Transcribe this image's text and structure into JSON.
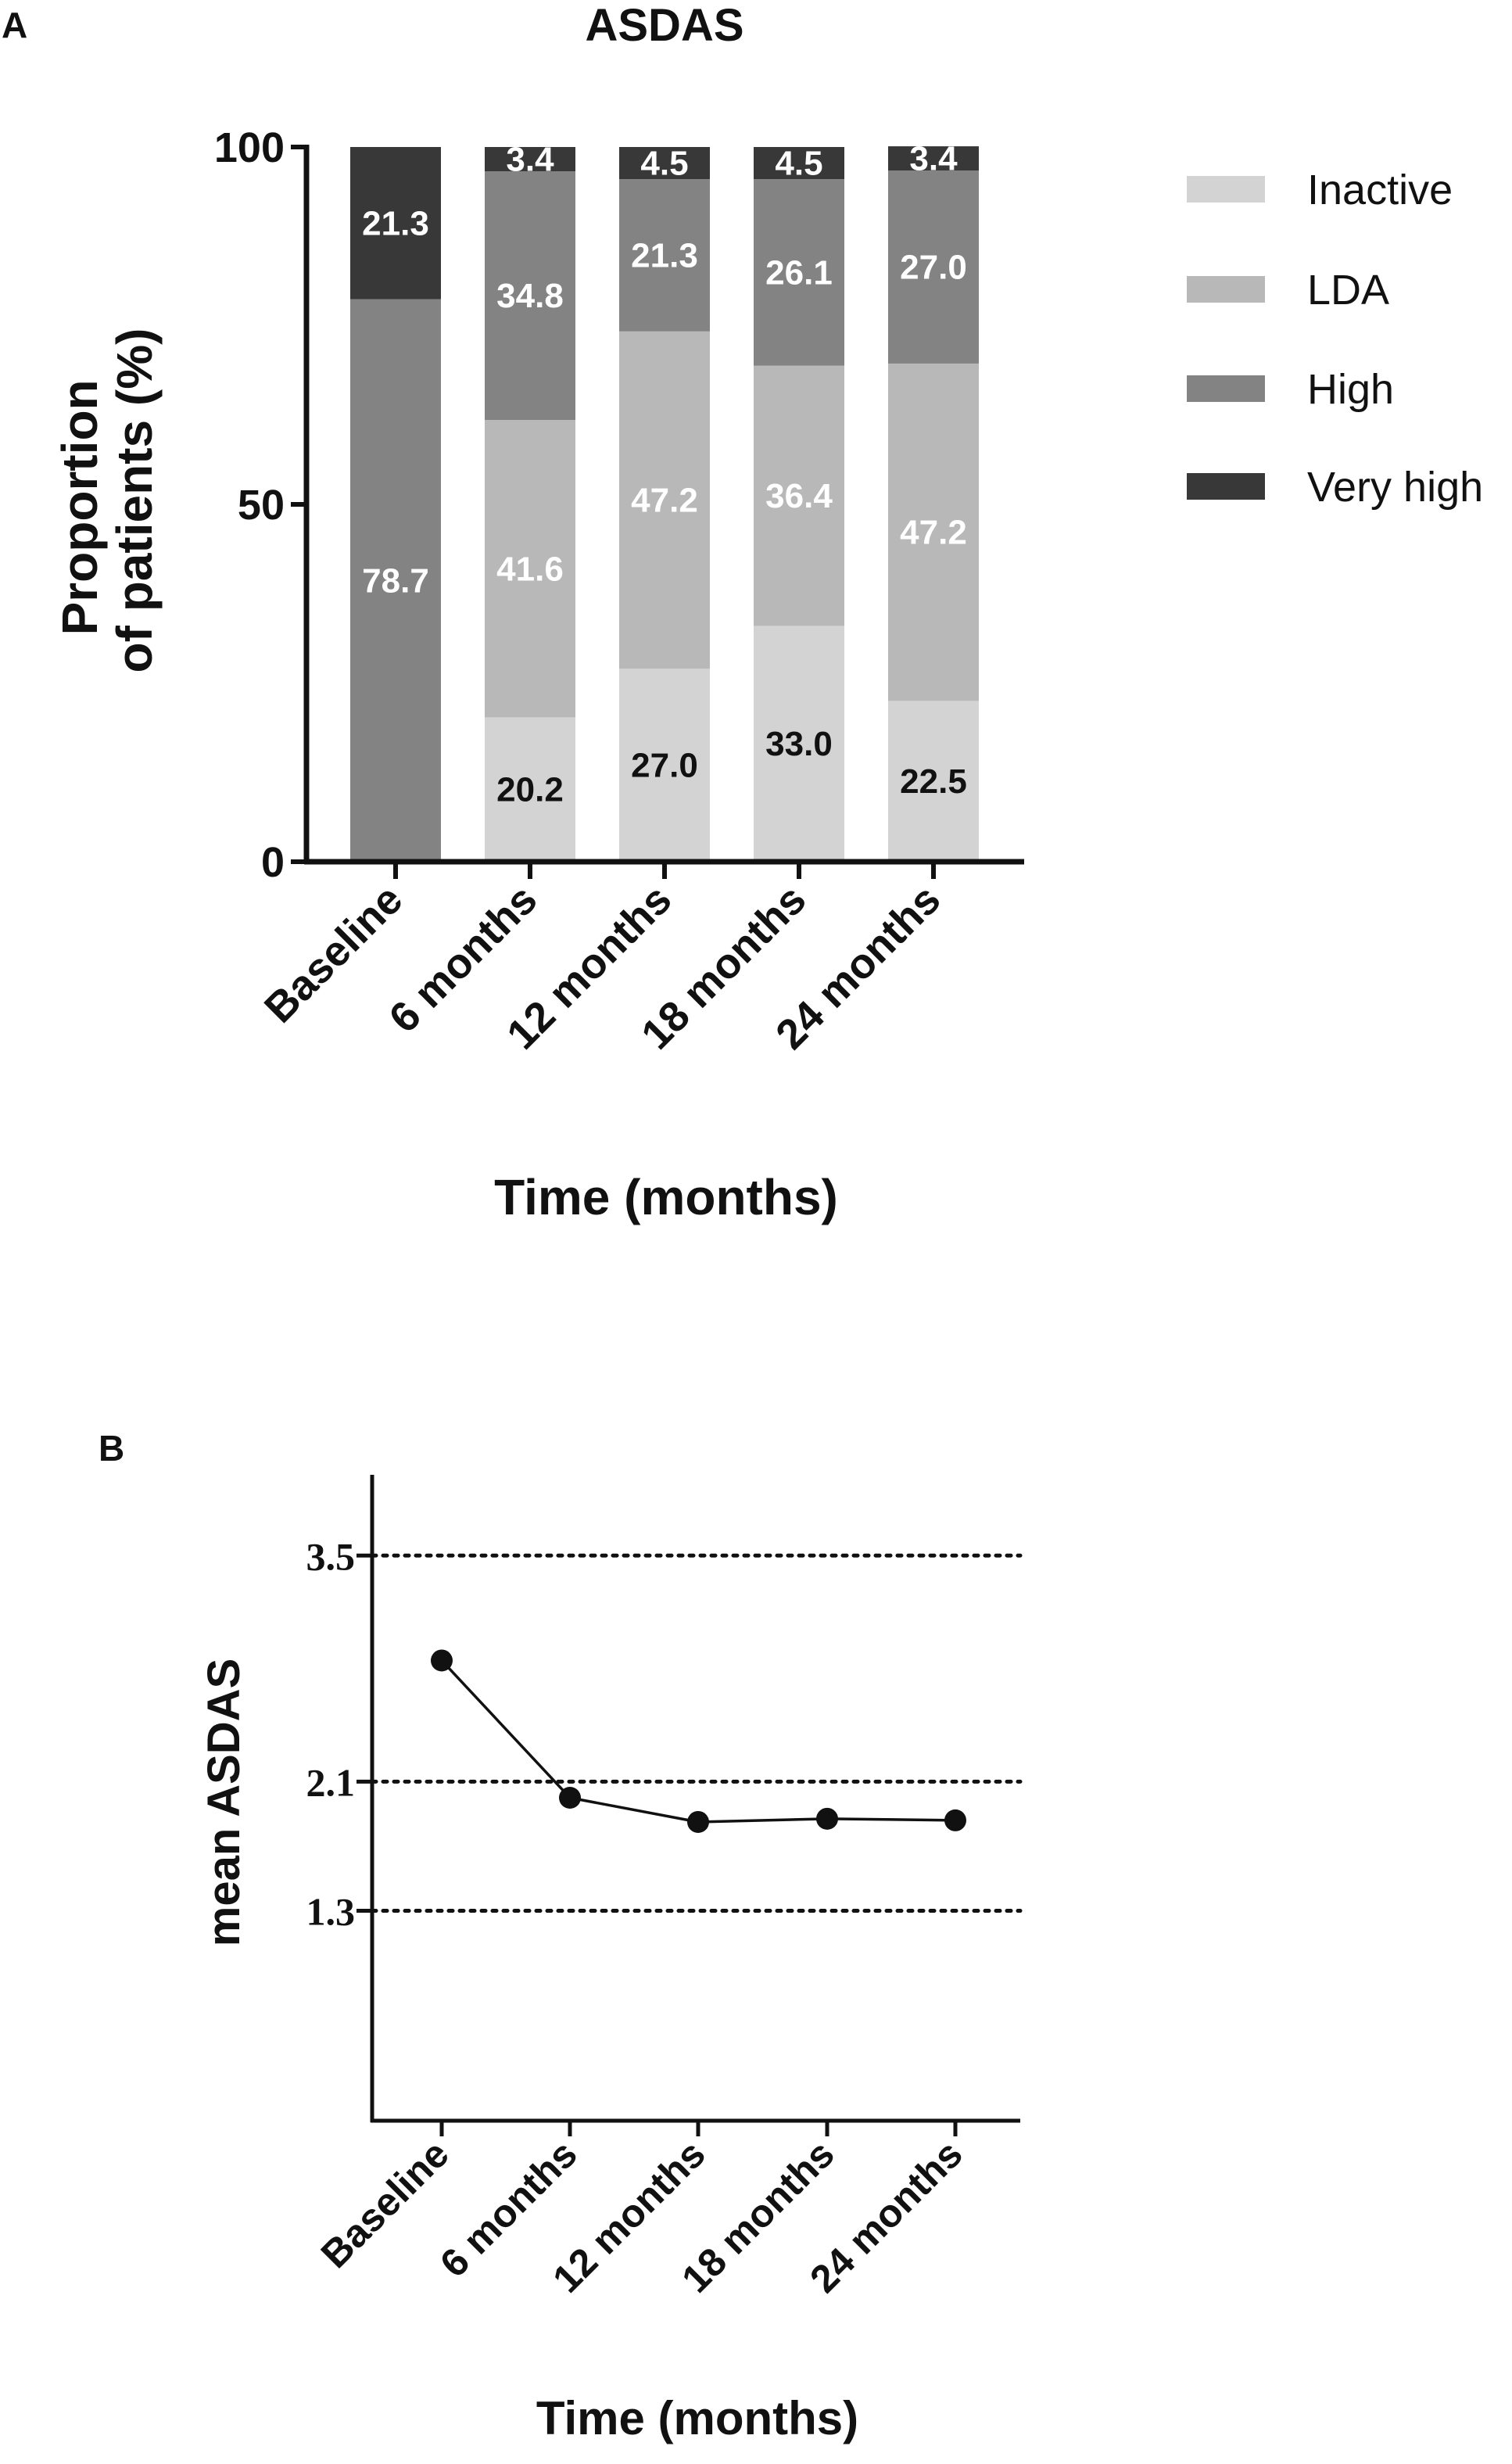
{
  "panel_a": {
    "letter": "A",
    "title": "ASDAS",
    "y_axis_title_line1": "Proportion",
    "y_axis_title_line2": "of patients (%)",
    "x_axis_title": "Time (months)",
    "y_ticks": [
      "0",
      "50",
      "100"
    ]
  },
  "panel_b": {
    "letter": "B",
    "y_axis_title": "mean ASDAS",
    "x_axis_title": "Time (months)",
    "y_ticks": [
      "1.3",
      "2.1",
      "3.5"
    ]
  },
  "colors": {
    "Inactive": "#d3d3d3",
    "LDA": "#b8b8b8",
    "High": "#838383",
    "Very high": "#383838",
    "label_light": "#ffffff",
    "label_dark": "#111111"
  },
  "chart_data": [
    {
      "type": "bar",
      "stacked": true,
      "title": "ASDAS",
      "xlabel": "Time (months)",
      "ylabel": "Proportion of patients (%)",
      "ylim": [
        0,
        100
      ],
      "categories": [
        "Baseline",
        "6 months",
        "12 months",
        "18 months",
        "24 months"
      ],
      "series": [
        {
          "name": "Inactive",
          "values": [
            0,
            20.2,
            27.0,
            33.0,
            22.5
          ],
          "labels": [
            "",
            "20.2",
            "27.0",
            "33.0",
            "22.5"
          ]
        },
        {
          "name": "LDA",
          "values": [
            0,
            41.6,
            47.2,
            36.4,
            47.2
          ],
          "labels": [
            "",
            "41.6",
            "47.2",
            "36.4",
            "47.2"
          ]
        },
        {
          "name": "High",
          "values": [
            78.7,
            34.8,
            21.3,
            26.1,
            27.0
          ],
          "labels": [
            "78.7",
            "34.8",
            "21.3",
            "26.1",
            "27.0"
          ]
        },
        {
          "name": "Very high",
          "values": [
            21.3,
            3.4,
            4.5,
            4.5,
            3.4
          ],
          "labels": [
            "21.3",
            "3.4",
            "4.5",
            "4.5",
            "3.4"
          ]
        }
      ],
      "legend": "right"
    },
    {
      "type": "line",
      "xlabel": "Time (months)",
      "ylabel": "mean ASDAS",
      "ylim": [
        0,
        4
      ],
      "categories": [
        "Baseline",
        "6 months",
        "12 months",
        "18 months",
        "24 months"
      ],
      "values": [
        2.85,
        2.0,
        1.85,
        1.87,
        1.86
      ],
      "reference_lines": [
        3.5,
        2.1,
        1.3
      ]
    }
  ]
}
